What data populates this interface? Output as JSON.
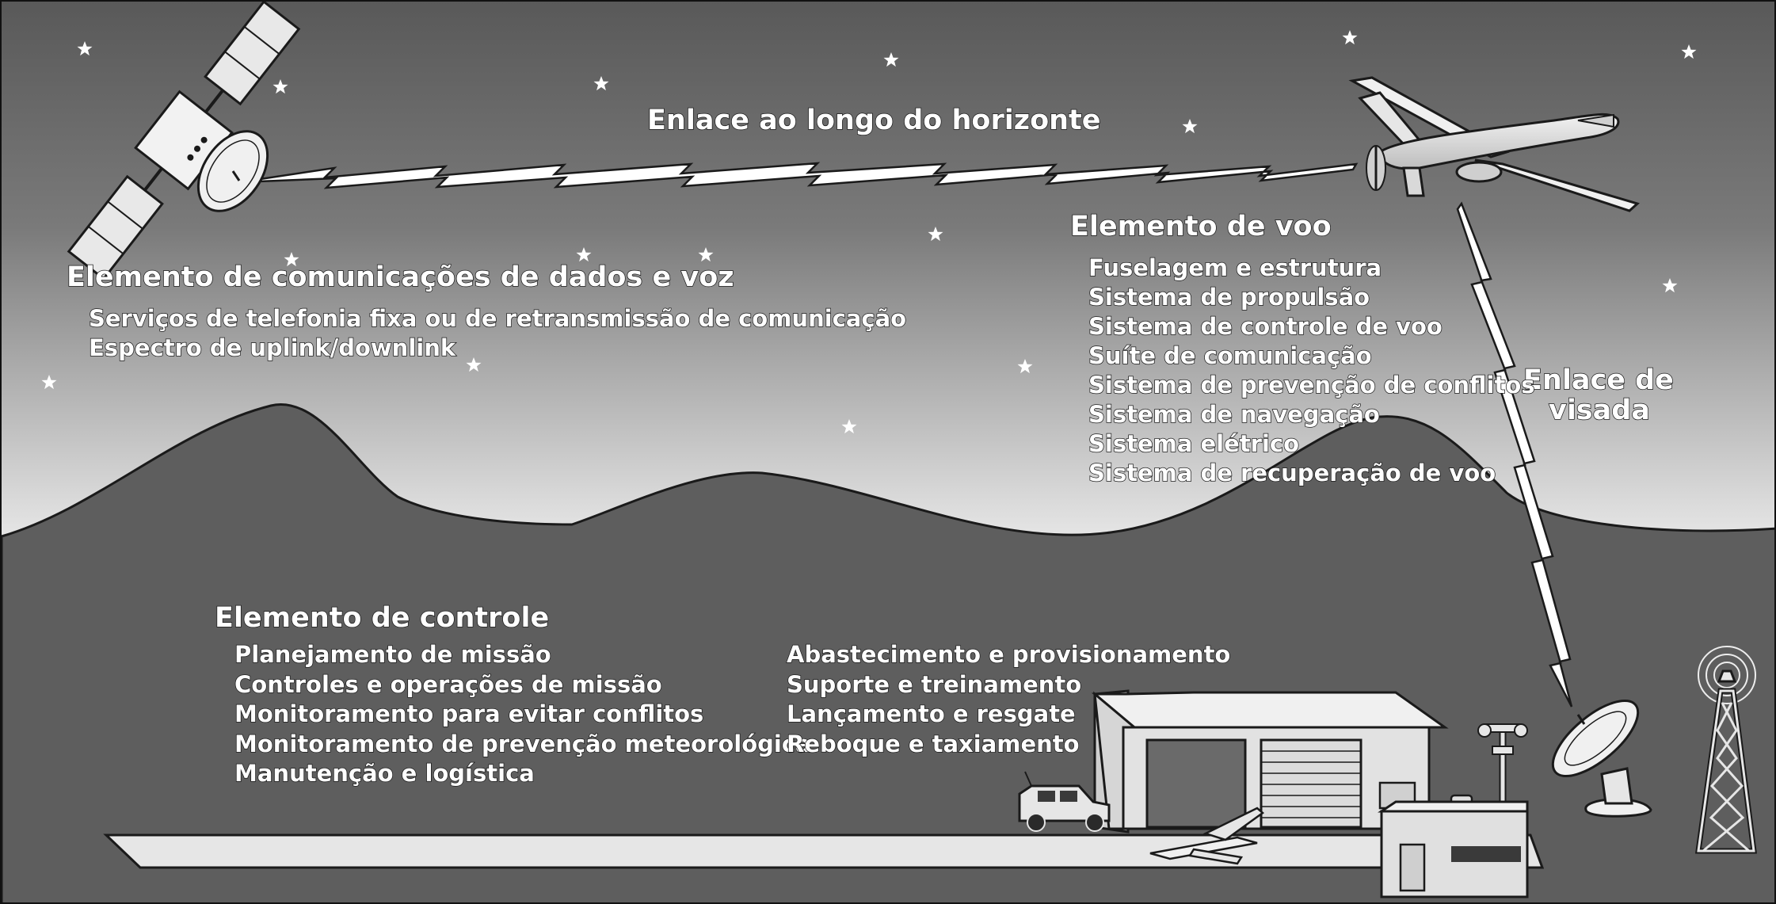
{
  "links": {
    "horizon": "Enlace ao longo do horizonte",
    "sight_line1": "Enlace de",
    "sight_line2": "visada"
  },
  "data_comm": {
    "title": "Elemento de comunicações de dados e voz",
    "items": [
      "Serviços de telefonia fixa ou de retransmissão de comunicação",
      "Espectro de uplink/downlink"
    ]
  },
  "flight": {
    "title": "Elemento de voo",
    "items": [
      "Fuselagem e estrutura",
      "Sistema de propulsão",
      "Sistema de controle de voo",
      "Suíte de comunicação",
      "Sistema de prevenção de conflitos",
      "Sistema de navegação",
      "Sistema elétrico",
      "Sistema de recuperação de voo"
    ]
  },
  "control": {
    "title": "Elemento de controle",
    "items_left": [
      "Planejamento de missão",
      "Controles e operações de missão",
      "Monitoramento para evitar conflitos",
      "Monitoramento de prevenção meteorológica",
      "Manutenção e logística"
    ],
    "items_right": [
      "Abastecimento e provisionamento",
      "Suporte e treinamento",
      "Lançamento e resgate",
      "Reboque e taxiamento"
    ]
  },
  "colors": {
    "ground": "#5e5e5e",
    "sky_top": "#5a5a5a",
    "sky_bottom": "#ffffff",
    "text": "#ffffff",
    "outline": "#1a1a1a"
  }
}
